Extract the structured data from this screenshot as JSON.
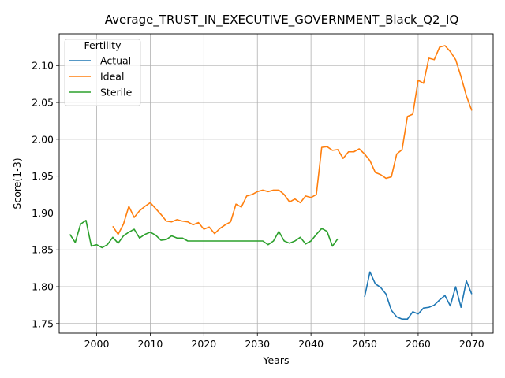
{
  "chart_data": {
    "type": "line",
    "title": "Average_TRUST_IN_EXECUTIVE_GOVERNMENT_Black_Q2_IQ",
    "xlabel": "Years",
    "ylabel": "Score(1-3)",
    "xlim": [
      1993,
      2074
    ],
    "ylim": [
      1.737,
      2.143
    ],
    "xticks": [
      2000,
      2010,
      2020,
      2030,
      2040,
      2050,
      2060,
      2070
    ],
    "yticks": [
      1.75,
      1.8,
      1.85,
      1.9,
      1.95,
      2.0,
      2.05,
      2.1
    ],
    "ytick_labels": [
      "1.75",
      "1.80",
      "1.85",
      "1.90",
      "1.95",
      "2.00",
      "2.05",
      "2.10"
    ],
    "grid": true,
    "legend": {
      "title": "Fertility",
      "placement": "top-left"
    },
    "series": [
      {
        "name": "Actual",
        "color": "#1f77b4",
        "x": [
          2050,
          2051,
          2052,
          2053,
          2054,
          2055,
          2056,
          2057,
          2058,
          2059,
          2060,
          2061,
          2062,
          2063,
          2064,
          2065,
          2066,
          2067,
          2068,
          2069,
          2070
        ],
        "y": [
          1.786,
          1.82,
          1.804,
          1.799,
          1.79,
          1.768,
          1.759,
          1.756,
          1.756,
          1.766,
          1.763,
          1.771,
          1.772,
          1.775,
          1.782,
          1.788,
          1.774,
          1.8,
          1.772,
          1.808,
          1.79
        ]
      },
      {
        "name": "Ideal",
        "color": "#ff7f0e",
        "x": [
          2003,
          2004,
          2005,
          2006,
          2007,
          2008,
          2009,
          2010,
          2011,
          2012,
          2013,
          2014,
          2015,
          2016,
          2017,
          2018,
          2019,
          2020,
          2021,
          2022,
          2023,
          2024,
          2025,
          2026,
          2027,
          2028,
          2029,
          2030,
          2031,
          2032,
          2033,
          2034,
          2035,
          2036,
          2037,
          2038,
          2039,
          2040,
          2041,
          2042,
          2043,
          2044,
          2045,
          2046,
          2047,
          2048,
          2049,
          2050,
          2051,
          2052,
          2053,
          2054,
          2055,
          2056,
          2057,
          2058,
          2059,
          2060,
          2061,
          2062,
          2063,
          2064,
          2065,
          2066,
          2067,
          2068,
          2069,
          2070
        ],
        "y": [
          1.882,
          1.871,
          1.885,
          1.909,
          1.894,
          1.903,
          1.909,
          1.914,
          1.906,
          1.898,
          1.889,
          1.888,
          1.891,
          1.889,
          1.888,
          1.884,
          1.887,
          1.878,
          1.881,
          1.872,
          1.879,
          1.884,
          1.888,
          1.912,
          1.908,
          1.923,
          1.925,
          1.929,
          1.931,
          1.929,
          1.931,
          1.931,
          1.925,
          1.915,
          1.919,
          1.914,
          1.923,
          1.921,
          1.925,
          1.989,
          1.99,
          1.985,
          1.986,
          1.974,
          1.983,
          1.983,
          1.987,
          1.98,
          1.971,
          1.955,
          1.952,
          1.947,
          1.949,
          1.98,
          1.986,
          2.031,
          2.034,
          2.08,
          2.076,
          2.11,
          2.108,
          2.125,
          2.127,
          2.119,
          2.108,
          2.085,
          2.059,
          2.039
        ]
      },
      {
        "name": "Sterile",
        "color": "#2ca02c",
        "x": [
          1995,
          1996,
          1997,
          1998,
          1999,
          2000,
          2001,
          2002,
          2003,
          2004,
          2005,
          2006,
          2007,
          2008,
          2009,
          2010,
          2011,
          2012,
          2013,
          2014,
          2015,
          2016,
          2017,
          2018,
          2019,
          2020,
          2021,
          2022,
          2023,
          2024,
          2025,
          2026,
          2027,
          2028,
          2029,
          2030,
          2031,
          2032,
          2033,
          2034,
          2035,
          2036,
          2037,
          2038,
          2039,
          2040,
          2041,
          2042,
          2043,
          2044,
          2045
        ],
        "y": [
          1.871,
          1.86,
          1.885,
          1.89,
          1.855,
          1.857,
          1.853,
          1.857,
          1.867,
          1.859,
          1.869,
          1.874,
          1.878,
          1.866,
          1.871,
          1.874,
          1.87,
          1.863,
          1.864,
          1.869,
          1.866,
          1.866,
          1.862,
          1.862,
          1.862,
          1.862,
          1.862,
          1.862,
          1.862,
          1.862,
          1.862,
          1.862,
          1.862,
          1.862,
          1.862,
          1.862,
          1.862,
          1.857,
          1.862,
          1.875,
          1.862,
          1.859,
          1.862,
          1.867,
          1.858,
          1.862,
          1.871,
          1.879,
          1.875,
          1.855,
          1.865
        ]
      }
    ]
  }
}
